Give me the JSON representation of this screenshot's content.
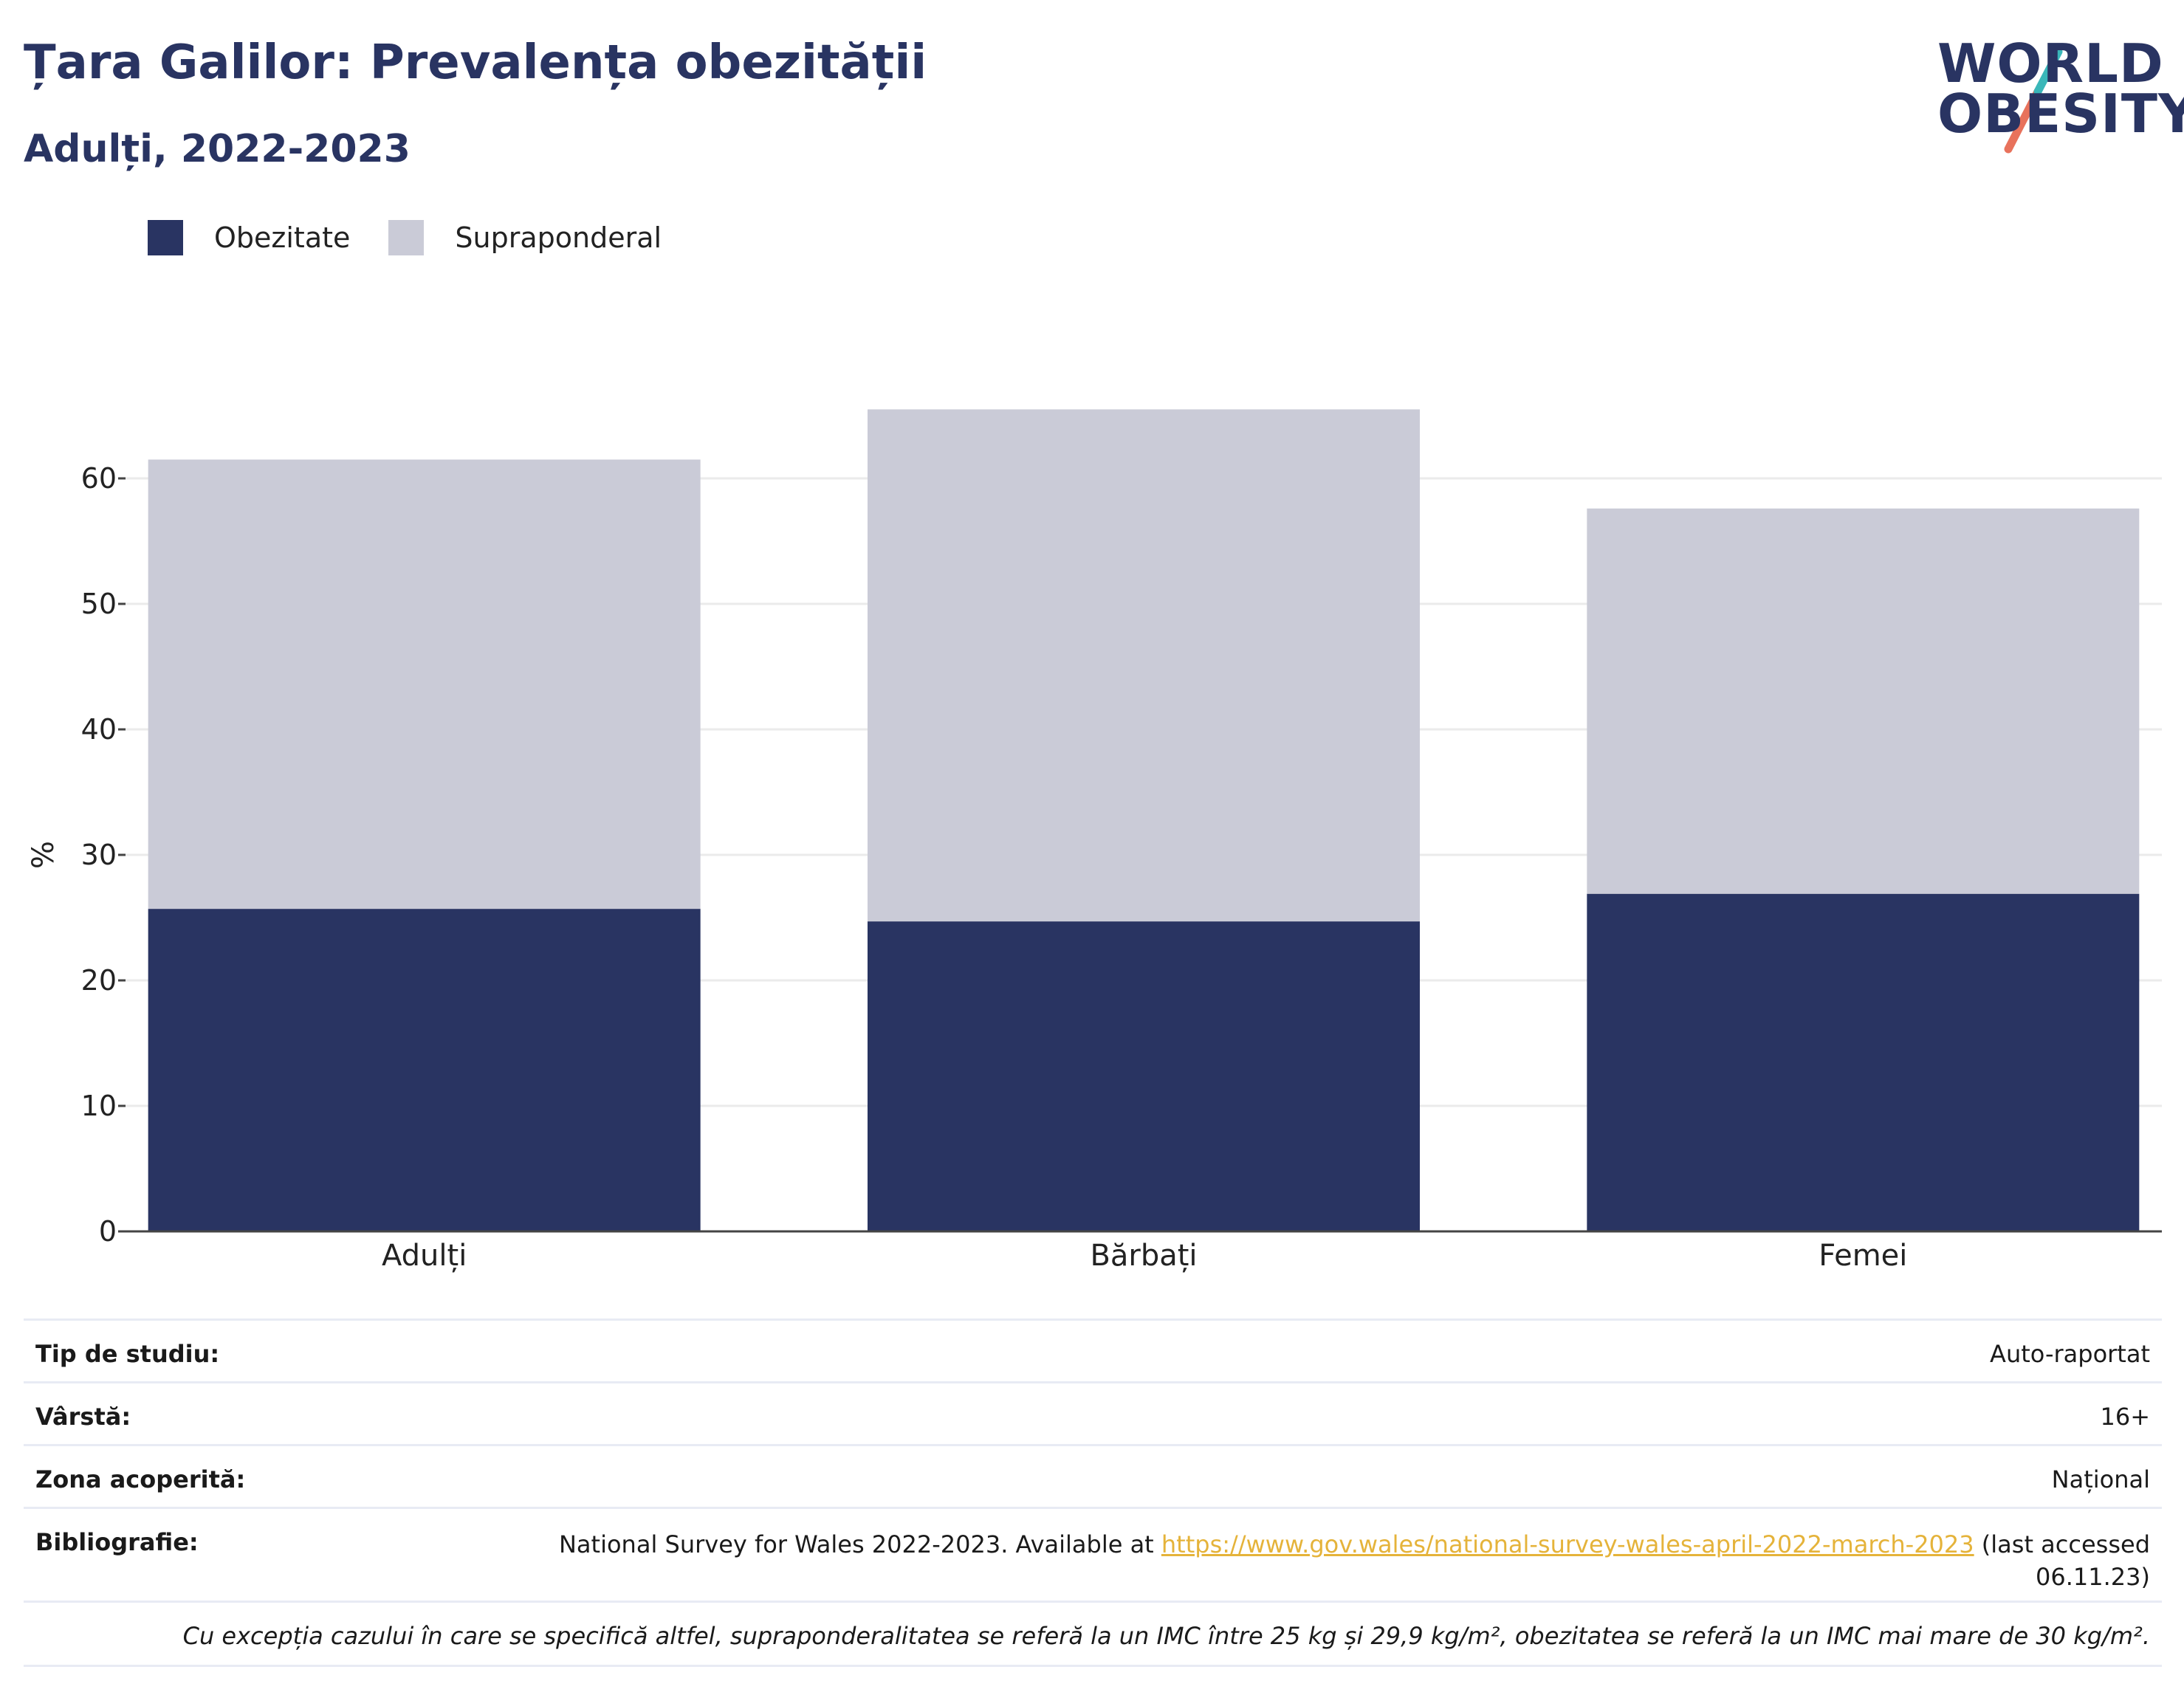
{
  "header": {
    "title": "Țara Galilor: Prevalența obezității",
    "subtitle": "Adulți, 2022-2023"
  },
  "logo": {
    "line1": "WORLD",
    "line2": "OBESITY",
    "slash_top_color": "#3ab7b9",
    "slash_bottom_color": "#e8725c"
  },
  "legend": {
    "items": [
      {
        "label": "Obezitate",
        "color": "#293462"
      },
      {
        "label": "Supraponderal",
        "color": "#cacbd7"
      }
    ]
  },
  "chart_data": {
    "type": "bar",
    "stacked": true,
    "categories": [
      "Adulți",
      "Bărbați",
      "Femei"
    ],
    "series": [
      {
        "name": "Obezitate",
        "color": "#293462",
        "values": [
          25.7,
          24.7,
          26.9
        ]
      },
      {
        "name": "Supraponderal",
        "color": "#cacbd7",
        "values": [
          35.8,
          40.8,
          30.7
        ]
      }
    ],
    "ylabel": "%",
    "ylim": [
      0,
      65
    ],
    "yticks": [
      0,
      10,
      20,
      30,
      40,
      50,
      60
    ],
    "grid": true
  },
  "info": {
    "study_type_label": "Tip de studiu:",
    "study_type_value": "Auto-raportat",
    "age_label": "Vârstă:",
    "age_value": "16+",
    "coverage_label": "Zona acoperită:",
    "coverage_value": "Național",
    "bibliography_label": "Bibliografie:",
    "bibliography_prefix": "National Survey for Wales 2022-2023. Available at ",
    "bibliography_link": "https://www.gov.wales/national-survey-wales-april-2022-march-2023",
    "bibliography_suffix": " (last accessed 06.11.23)",
    "footnote": "Cu excepția cazului în care se specifică altfel, supraponderalitatea se referă la un IMC între 25 kg și 29,9 kg/m², obezitatea se referă la un IMC mai mare de 30 kg/m²."
  }
}
